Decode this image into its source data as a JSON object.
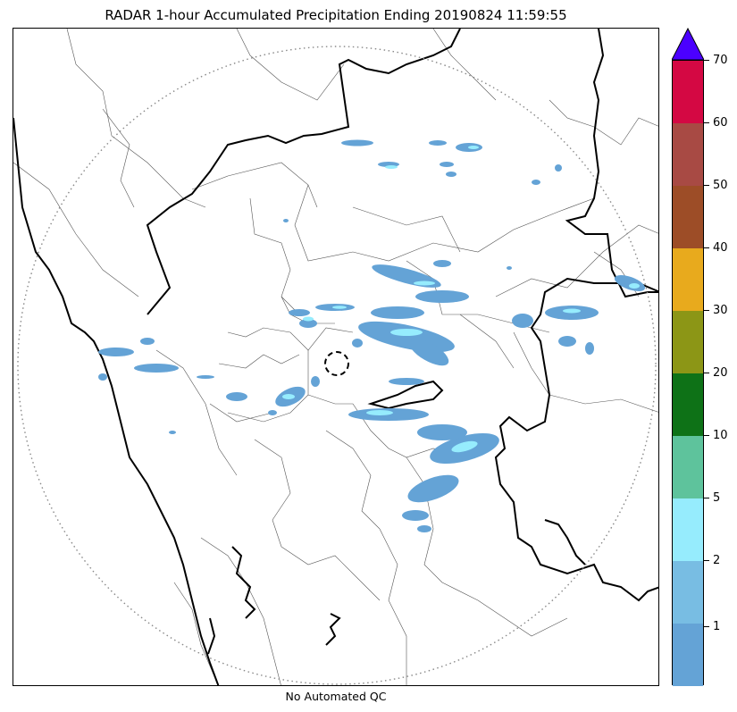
{
  "title": "RADAR 1-hour Accumulated Precipitation Ending 20190824 11:59:55",
  "footer": "No Automated QC",
  "colorbar": {
    "colors": [
      "#64a3d6",
      "#78bde3",
      "#96ecfd",
      "#5ec39c",
      "#0e7217",
      "#8c9616",
      "#e8aa1d",
      "#9d4d27",
      "#a84a44",
      "#d40843"
    ],
    "extend_color": "#4b00ff",
    "tick_labels": [
      "1",
      "2",
      "5",
      "10",
      "20",
      "30",
      "40",
      "50",
      "60",
      "70"
    ]
  },
  "map": {
    "radar_range_ring": "dotted",
    "radar_site_marker": "dashed circle",
    "echo_color_main": "#64a3d6",
    "echo_color_light": "#96ecfd"
  }
}
